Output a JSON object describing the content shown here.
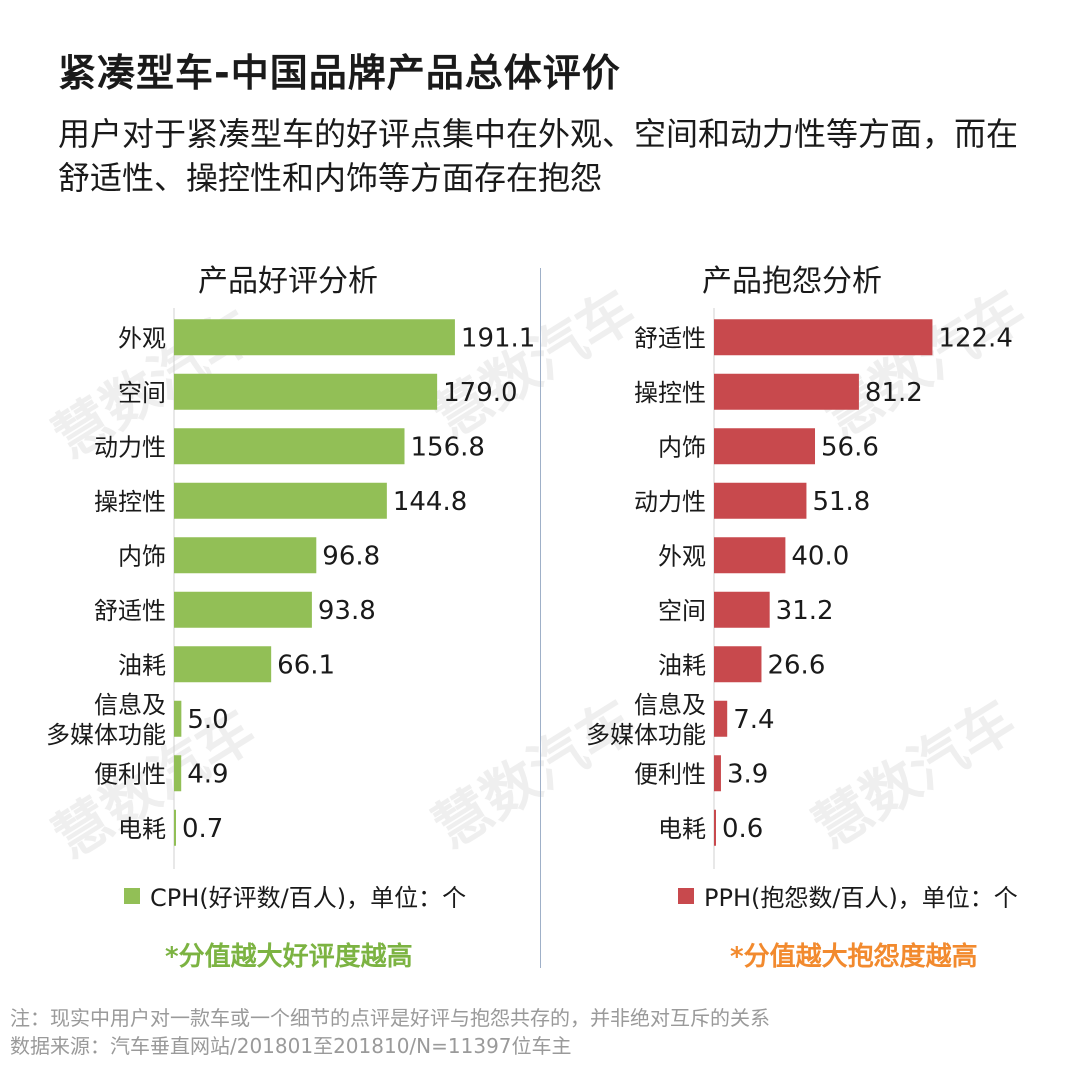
{
  "title": "紧凑型车-中国品牌产品总体评价",
  "subtitle": "用户对于紧凑型车的好评点集中在外观、空间和动力性等方面，而在舒适性、操控性和内饰等方面存在抱怨",
  "watermark_text": "慧数汽车",
  "colors": {
    "good": "#92bf56",
    "bad": "#c8494d",
    "good_note": "#7cb342",
    "bad_note": "#f28a2e"
  },
  "chart_data": [
    {
      "type": "bar",
      "orientation": "horizontal",
      "title": "产品好评分析",
      "categories": [
        "外观",
        "空间",
        "动力性",
        "操控性",
        "内饰",
        "舒适性",
        "油耗",
        "信息及\n多媒体功能",
        "便利性",
        "电耗"
      ],
      "values": [
        191.1,
        179.0,
        156.8,
        144.8,
        96.8,
        93.8,
        66.1,
        5.0,
        4.9,
        0.7
      ],
      "value_labels": [
        "191.1",
        "179.0",
        "156.8",
        "144.8",
        "96.8",
        "93.8",
        "66.1",
        "5.0",
        "4.9",
        "0.7"
      ],
      "xlim": [
        0,
        200
      ],
      "legend": "CPH(好评数/百人)，单位：个",
      "note": "*分值越大好评度越高"
    },
    {
      "type": "bar",
      "orientation": "horizontal",
      "title": "产品抱怨分析",
      "categories": [
        "舒适性",
        "操控性",
        "内饰",
        "动力性",
        "外观",
        "空间",
        "油耗",
        "信息及\n多媒体功能",
        "便利性",
        "电耗"
      ],
      "values": [
        122.4,
        81.2,
        56.6,
        51.8,
        40.0,
        31.2,
        26.6,
        7.4,
        3.9,
        0.6
      ],
      "value_labels": [
        "122.4",
        "81.2",
        "56.6",
        "51.8",
        "40.0",
        "31.2",
        "26.6",
        "7.4",
        "3.9",
        "0.6"
      ],
      "xlim": [
        0,
        130
      ],
      "legend": "PPH(抱怨数/百人)，单位：个",
      "note": "*分值越大抱怨度越高"
    }
  ],
  "footnotes": [
    "注：现实中用户对一款车或一个细节的点评是好评与抱怨共存的，并非绝对互斥的关系",
    "数据来源：汽车垂直网站/201801至201810/N=11397位车主"
  ]
}
